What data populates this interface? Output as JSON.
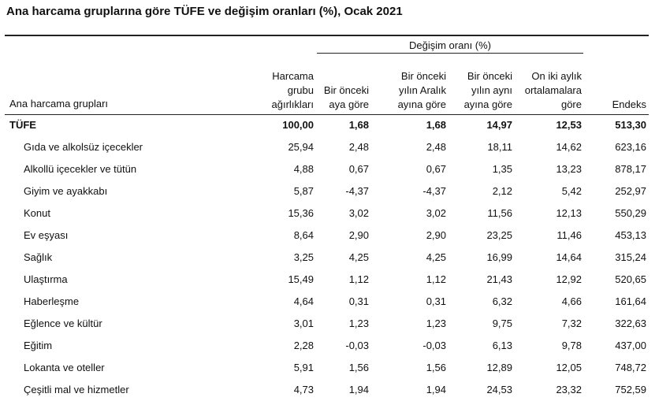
{
  "title": "Ana harcama gruplarına göre TÜFE ve değişim oranları (%), Ocak 2021",
  "group_header": "Değişim oranı (%)",
  "columns": {
    "label": "Ana harcama grupları",
    "weight": "Harcama\ngrubu\nağırlıkları",
    "mom": "Bir önceki\naya göre",
    "ytd": "Bir önceki\nyılın Aralık\nayına göre",
    "yoy": "Bir önceki\nyılın aynı\nayına göre",
    "avg12": "On iki aylık\nortalamalara\ngöre",
    "index": "Endeks"
  },
  "rows": [
    {
      "label": "TÜFE",
      "weight": "100,00",
      "mom": "1,68",
      "ytd": "1,68",
      "yoy": "14,97",
      "avg12": "12,53",
      "index": "513,30",
      "total": true
    },
    {
      "label": "Gıda ve alkolsüz içecekler",
      "weight": "25,94",
      "mom": "2,48",
      "ytd": "2,48",
      "yoy": "18,11",
      "avg12": "14,62",
      "index": "623,16"
    },
    {
      "label": "Alkollü içecekler ve tütün",
      "weight": "4,88",
      "mom": "0,67",
      "ytd": "0,67",
      "yoy": "1,35",
      "avg12": "13,23",
      "index": "878,17"
    },
    {
      "label": "Giyim ve ayakkabı",
      "weight": "5,87",
      "mom": "-4,37",
      "ytd": "-4,37",
      "yoy": "2,12",
      "avg12": "5,42",
      "index": "252,97"
    },
    {
      "label": "Konut",
      "weight": "15,36",
      "mom": "3,02",
      "ytd": "3,02",
      "yoy": "11,56",
      "avg12": "12,13",
      "index": "550,29"
    },
    {
      "label": "Ev eşyası",
      "weight": "8,64",
      "mom": "2,90",
      "ytd": "2,90",
      "yoy": "23,25",
      "avg12": "11,46",
      "index": "453,13"
    },
    {
      "label": "Sağlık",
      "weight": "3,25",
      "mom": "4,25",
      "ytd": "4,25",
      "yoy": "16,99",
      "avg12": "14,64",
      "index": "315,24"
    },
    {
      "label": "Ulaştırma",
      "weight": "15,49",
      "mom": "1,12",
      "ytd": "1,12",
      "yoy": "21,43",
      "avg12": "12,92",
      "index": "520,65"
    },
    {
      "label": "Haberleşme",
      "weight": "4,64",
      "mom": "0,31",
      "ytd": "0,31",
      "yoy": "6,32",
      "avg12": "4,66",
      "index": "161,64"
    },
    {
      "label": "Eğlence ve kültür",
      "weight": "3,01",
      "mom": "1,23",
      "ytd": "1,23",
      "yoy": "9,75",
      "avg12": "7,32",
      "index": "322,63"
    },
    {
      "label": "Eğitim",
      "weight": "2,28",
      "mom": "-0,03",
      "ytd": "-0,03",
      "yoy": "6,13",
      "avg12": "9,78",
      "index": "437,00"
    },
    {
      "label": "Lokanta ve oteller",
      "weight": "5,91",
      "mom": "1,56",
      "ytd": "1,56",
      "yoy": "12,89",
      "avg12": "12,05",
      "index": "748,72"
    },
    {
      "label": "Çeşitli mal ve hizmetler",
      "weight": "4,73",
      "mom": "1,94",
      "ytd": "1,94",
      "yoy": "24,53",
      "avg12": "23,32",
      "index": "752,59"
    }
  ]
}
